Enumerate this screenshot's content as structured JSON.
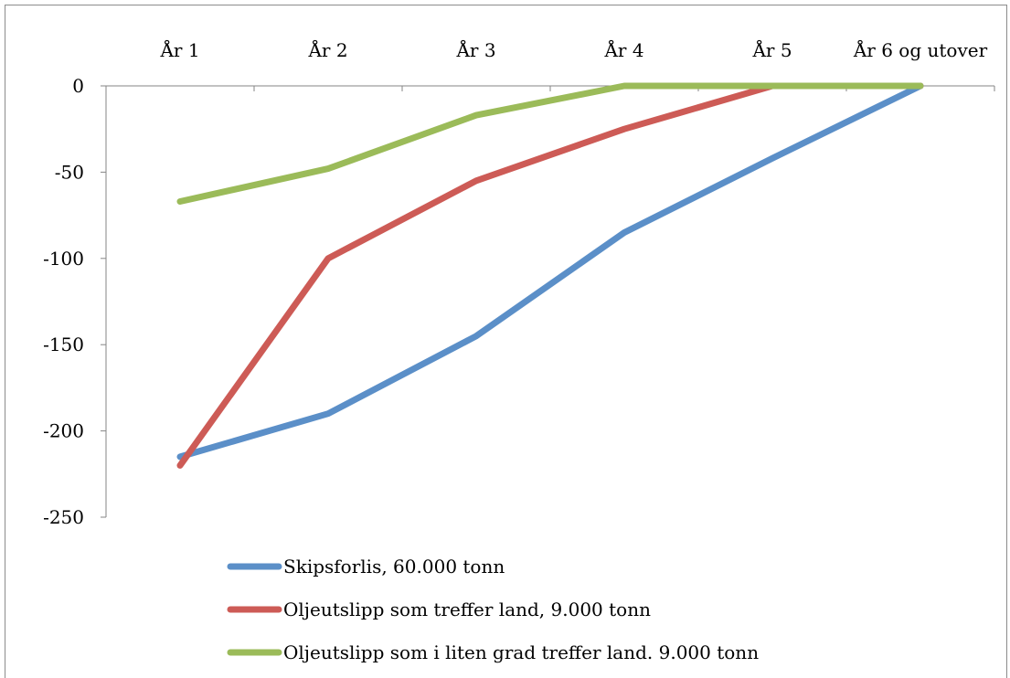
{
  "chart_data": {
    "type": "line",
    "categories": [
      "År 1",
      "År 2",
      "År 3",
      "År 4",
      "År 5",
      "År 6 og utover"
    ],
    "yticks": [
      0,
      -50,
      -100,
      -150,
      -200,
      -250
    ],
    "ylim": [
      -250,
      0
    ],
    "grid": false,
    "xaxis_position": "top",
    "legend_position": "bottom",
    "series": [
      {
        "name": "Skipsforlis, 60.000 tonn",
        "color": "#5b8fc8",
        "values": [
          -215,
          -190,
          -145,
          -85,
          -42,
          0
        ]
      },
      {
        "name": "Oljeutslipp som treffer land, 9.000 tonn",
        "color": "#cd5b56",
        "values": [
          -220,
          -100,
          -55,
          -25,
          0,
          0
        ]
      },
      {
        "name": "Oljeutslipp som i liten grad treffer land. 9.000 tonn",
        "color": "#9bbb59",
        "values": [
          -67,
          -48,
          -17,
          0,
          0,
          0
        ]
      }
    ]
  }
}
